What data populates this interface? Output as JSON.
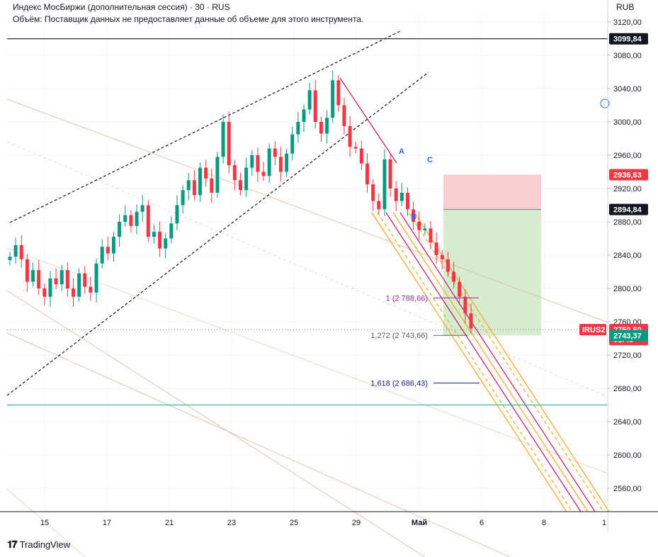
{
  "legend": {
    "title": "Индекс МосБиржи (дополнительная сессия) · 30 · RUS",
    "volume_note": "Объём: Поставщик данных не предоставляет данные об объеме для этого инструмента."
  },
  "currency": "RUB",
  "brand": {
    "name": "TradingView"
  },
  "colors": {
    "up": "#089981",
    "down": "#f23645",
    "wedge": "#131722",
    "channel": "#f5a623",
    "channel_mid": "#c2185b",
    "gann": "#d9b8a0",
    "stop_zone": "#f7c5c8",
    "target_zone": "#cfe9c6",
    "green_line": "#26a69a",
    "fib_1": "#9c27b0",
    "fib_1272": "#5d606b",
    "fib_1618": "#1a237e",
    "wave_a": "#2962ff",
    "badge_red": "#f23645",
    "badge_dark": "#131722",
    "badge_green": "#089981"
  },
  "chart_data": {
    "type": "candlestick",
    "symbol": "IRUS2",
    "timeframe": "30",
    "y_axis": {
      "min": 2520,
      "max": 3140,
      "ticks": [
        3120,
        3080,
        3040,
        3000,
        2960,
        2920,
        2880,
        2840,
        2800,
        2760,
        2720,
        2680,
        2640,
        2600,
        2560
      ]
    },
    "x_axis": {
      "labels": [
        "15",
        "17",
        "21",
        "23",
        "25",
        "29",
        "Май",
        "6",
        "8",
        "1"
      ]
    },
    "price_badges": [
      {
        "value": "3099,84",
        "style": "dark"
      },
      {
        "value": "2936,63",
        "style": "red"
      },
      {
        "value": "2894,84",
        "style": "dark"
      },
      {
        "value": "2750,50",
        "style": "red",
        "countdown": "01:43",
        "symbol": "IRUS2"
      },
      {
        "value": "2743,37",
        "style": "green"
      }
    ],
    "horizontal_lines": [
      {
        "value": 3099.84,
        "role": "resistance"
      },
      {
        "value": 2660,
        "role": "support"
      }
    ],
    "fib_extension": [
      {
        "label": "1 (2 788,66)",
        "value": 2788.66
      },
      {
        "label": "1,272 (2 743,66)",
        "value": 2743.66
      },
      {
        "label": "1,618 (2 686,43)",
        "value": 2686.43
      }
    ],
    "wave_labels": [
      "A",
      "B",
      "C"
    ],
    "position": {
      "stop": 2936.63,
      "entry": 2894.84,
      "target": 2743.37
    },
    "candles_close_path": [
      2838,
      2852,
      2835,
      2808,
      2822,
      2800,
      2790,
      2812,
      2805,
      2822,
      2800,
      2790,
      2818,
      2802,
      2795,
      2830,
      2850,
      2842,
      2862,
      2880,
      2888,
      2875,
      2892,
      2900,
      2862,
      2868,
      2848,
      2860,
      2878,
      2900,
      2918,
      2930,
      2912,
      2945,
      2932,
      2915,
      2958,
      3000,
      2948,
      2930,
      2918,
      2945,
      2960,
      2940,
      2935,
      2968,
      2958,
      2940,
      2962,
      2985,
      3000,
      3015,
      3038,
      3000,
      2986,
      3005,
      3050,
      3020,
      2995,
      2970,
      2968,
      2950,
      2925,
      2905,
      2895,
      2955,
      2920,
      2905,
      2915,
      2895,
      2880,
      2870,
      2872,
      2855,
      2840,
      2835,
      2820,
      2808,
      2790,
      2770,
      2752
    ]
  }
}
